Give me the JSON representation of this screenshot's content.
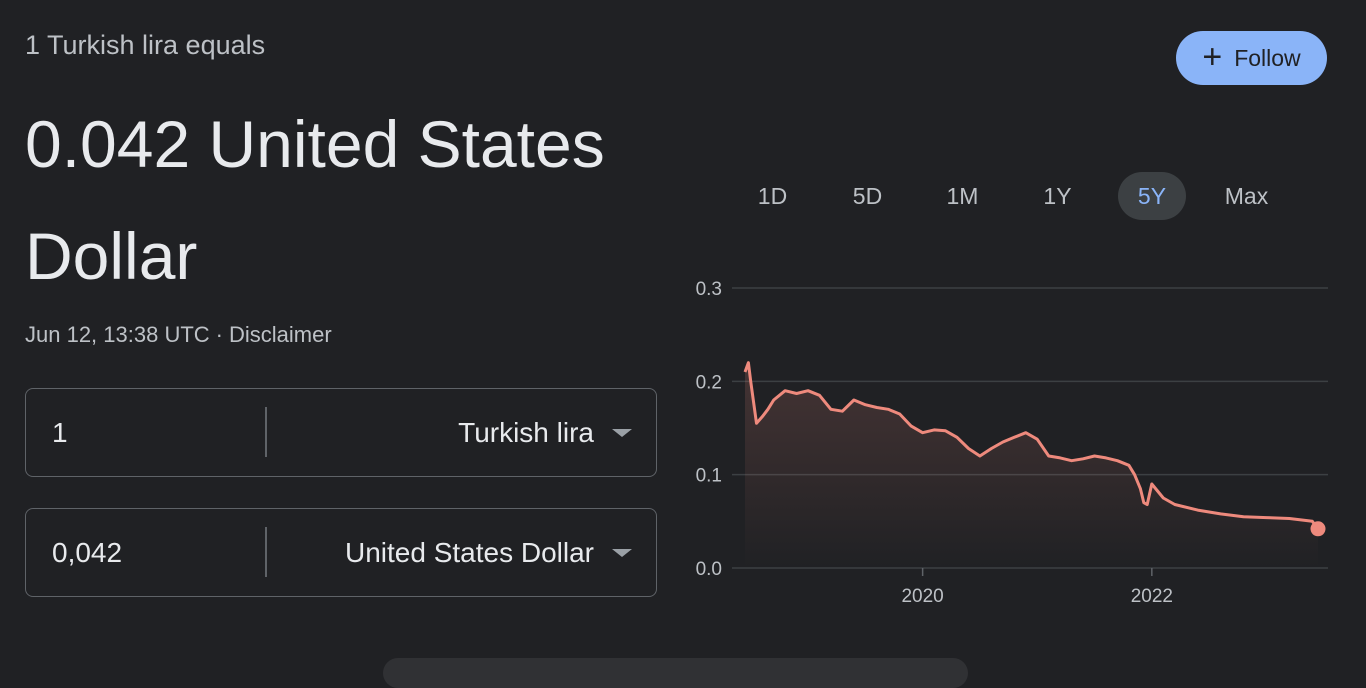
{
  "header": {
    "equals_text": "1 Turkish lira equals",
    "result_text": "0.042 United States Dollar",
    "timestamp": "Jun 12, 13:38 UTC",
    "separator": "·",
    "disclaimer": "Disclaimer"
  },
  "follow": {
    "label": "Follow",
    "icon": "plus-icon"
  },
  "converter": {
    "from": {
      "amount": "1",
      "currency": "Turkish lira"
    },
    "to": {
      "amount": "0,042",
      "currency": "United States Dollar"
    }
  },
  "ranges": {
    "items": [
      "1D",
      "5D",
      "1M",
      "1Y",
      "5Y",
      "Max"
    ],
    "selected": "5Y"
  },
  "colors": {
    "background": "#202124",
    "accent": "#8ab4f8",
    "line": "#ee8a7d",
    "grid": "#3c4043"
  },
  "chart_data": {
    "type": "area",
    "ylim": [
      0,
      0.3
    ],
    "yticks": [
      0.3,
      0.2,
      0.1,
      0.0
    ],
    "ytick_labels": [
      "0.3",
      "0.2",
      "0.1",
      "0.0"
    ],
    "xticks": [
      "2020",
      "2022"
    ],
    "xlim": [
      2018.45,
      2023.45
    ],
    "x": [
      2018.45,
      2018.48,
      2018.5,
      2018.55,
      2018.6,
      2018.65,
      2018.7,
      2018.8,
      2018.9,
      2019.0,
      2019.1,
      2019.2,
      2019.3,
      2019.4,
      2019.5,
      2019.6,
      2019.7,
      2019.8,
      2019.9,
      2020.0,
      2020.1,
      2020.2,
      2020.3,
      2020.4,
      2020.5,
      2020.6,
      2020.7,
      2020.8,
      2020.9,
      2021.0,
      2021.1,
      2021.2,
      2021.3,
      2021.4,
      2021.5,
      2021.6,
      2021.7,
      2021.8,
      2021.85,
      2021.9,
      2021.93,
      2021.96,
      2022.0,
      2022.1,
      2022.2,
      2022.4,
      2022.6,
      2022.8,
      2023.0,
      2023.2,
      2023.4,
      2023.45
    ],
    "values": [
      0.21,
      0.22,
      0.2,
      0.155,
      0.162,
      0.17,
      0.18,
      0.19,
      0.187,
      0.19,
      0.185,
      0.17,
      0.168,
      0.18,
      0.175,
      0.172,
      0.17,
      0.165,
      0.152,
      0.145,
      0.148,
      0.147,
      0.14,
      0.128,
      0.12,
      0.128,
      0.135,
      0.14,
      0.145,
      0.138,
      0.12,
      0.118,
      0.115,
      0.117,
      0.12,
      0.118,
      0.115,
      0.11,
      0.1,
      0.085,
      0.07,
      0.068,
      0.09,
      0.075,
      0.068,
      0.062,
      0.058,
      0.055,
      0.054,
      0.053,
      0.05,
      0.042
    ],
    "last_value": 0.042
  }
}
